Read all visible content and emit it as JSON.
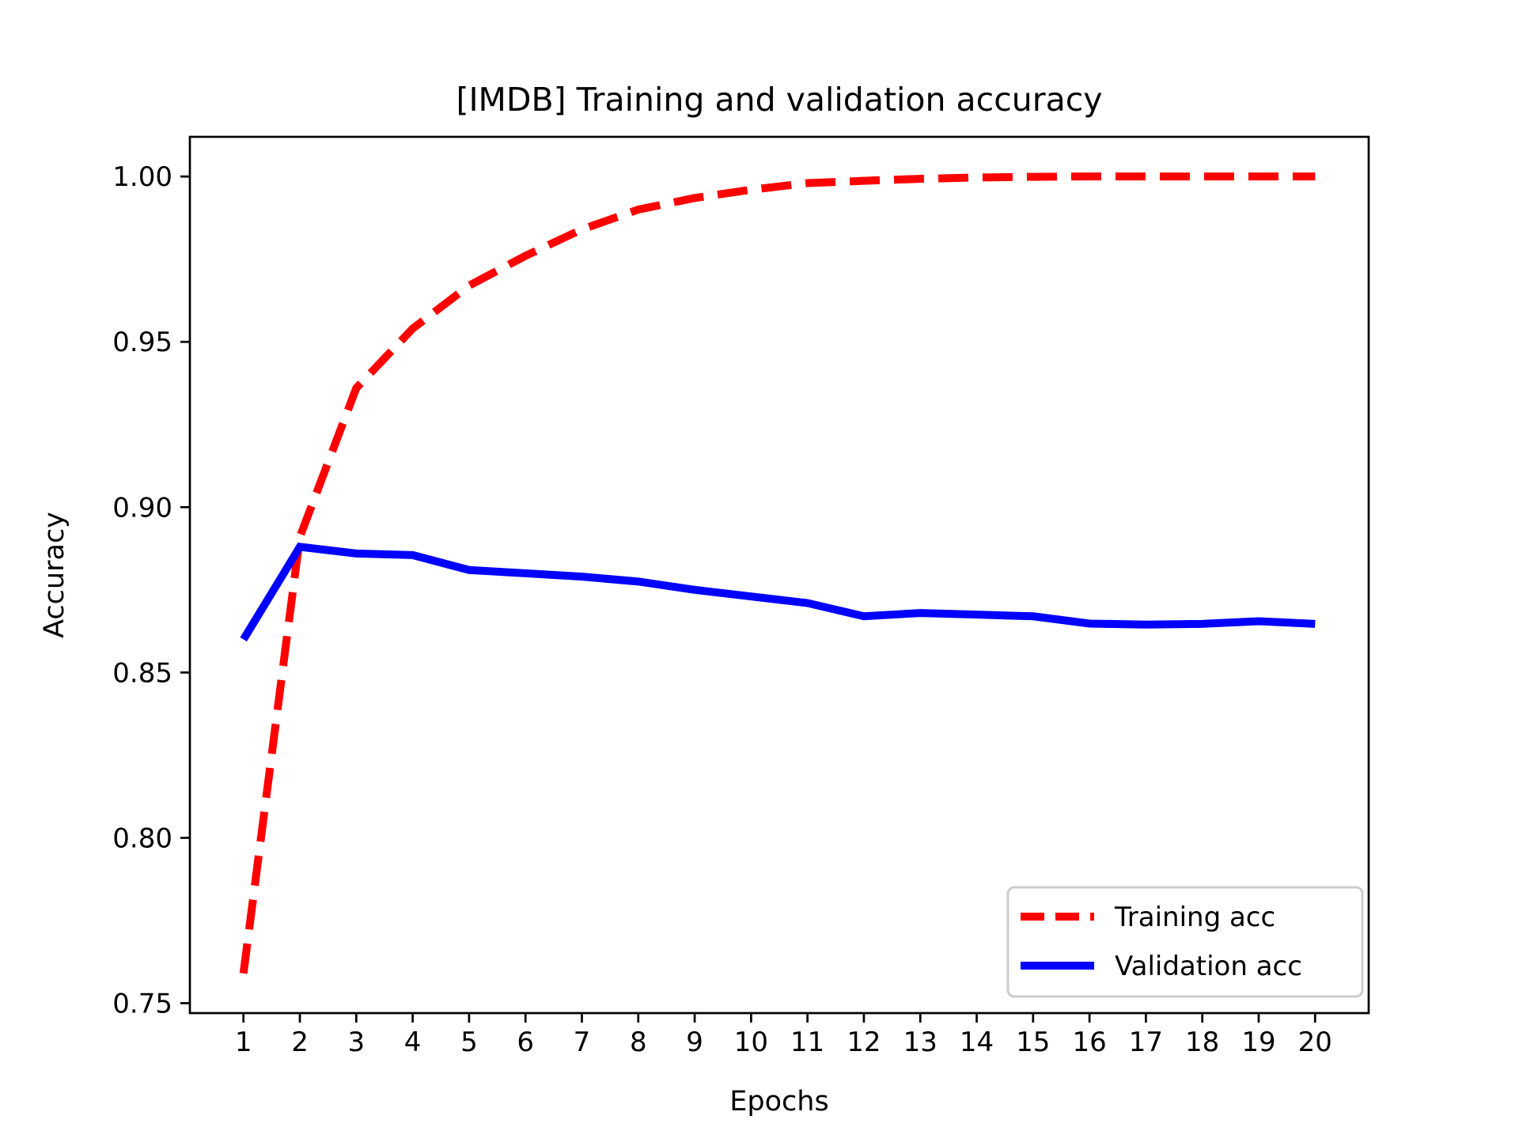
{
  "chart_data": {
    "type": "line",
    "title": "[IMDB] Training and validation accuracy",
    "xlabel": "Epochs",
    "ylabel": "Accuracy",
    "x": [
      1,
      2,
      3,
      4,
      5,
      6,
      7,
      8,
      9,
      10,
      11,
      12,
      13,
      14,
      15,
      16,
      17,
      18,
      19,
      20
    ],
    "series": [
      {
        "name": "Training acc",
        "color": "#ff0000",
        "style": "dashed",
        "values": [
          0.759,
          0.891,
          0.936,
          0.954,
          0.967,
          0.976,
          0.984,
          0.99,
          0.9935,
          0.996,
          0.998,
          0.9987,
          0.9993,
          0.9997,
          0.9999,
          1.0,
          1.0,
          1.0,
          1.0,
          1.0
        ]
      },
      {
        "name": "Validation acc",
        "color": "#0000ff",
        "style": "solid",
        "values": [
          0.86,
          0.888,
          0.886,
          0.8855,
          0.881,
          0.88,
          0.879,
          0.8775,
          0.875,
          0.873,
          0.871,
          0.867,
          0.868,
          0.8675,
          0.867,
          0.8648,
          0.8645,
          0.8647,
          0.8655,
          0.8647
        ]
      }
    ],
    "xticks": [
      1,
      2,
      3,
      4,
      5,
      6,
      7,
      8,
      9,
      10,
      11,
      12,
      13,
      14,
      15,
      16,
      17,
      18,
      19,
      20
    ],
    "yticks": [
      0.75,
      0.8,
      0.85,
      0.9,
      0.95,
      1.0
    ],
    "xlim": [
      0.05,
      20.95
    ],
    "ylim": [
      0.747,
      1.012
    ],
    "grid": false,
    "legend": {
      "position": "lower right",
      "entries": [
        "Training acc",
        "Validation acc"
      ],
      "border_color": "#cccccc",
      "background_color": "#ffffff"
    },
    "colors": {
      "spine": "#000000",
      "text": "#000000"
    }
  }
}
